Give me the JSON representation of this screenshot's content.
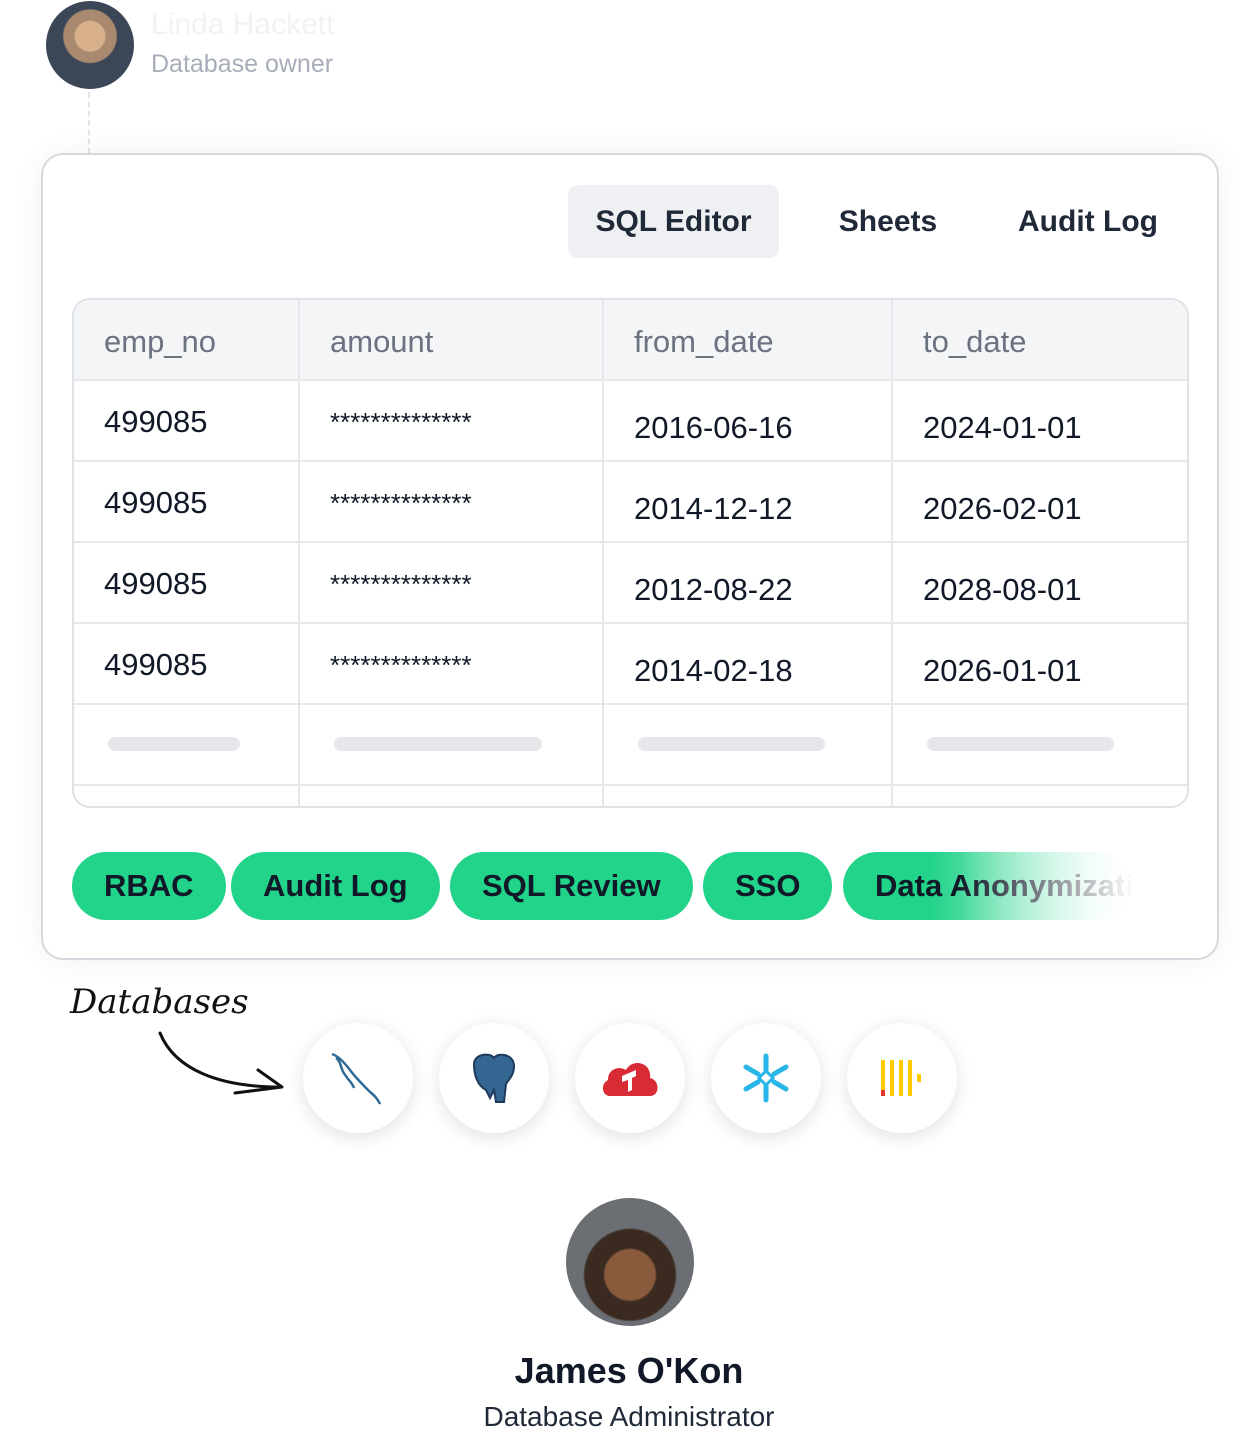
{
  "owner": {
    "name": "Linda Hackett",
    "role": "Database owner"
  },
  "tabs": [
    {
      "label": "SQL Editor",
      "active": true
    },
    {
      "label": "Sheets"
    },
    {
      "label": "Audit Log"
    }
  ],
  "table": {
    "columns": [
      "emp_no",
      "amount",
      "from_date",
      "to_date"
    ],
    "rows": [
      [
        "499085",
        "**************",
        "2016-06-16",
        "2024-01-01"
      ],
      [
        "499085",
        "**************",
        "2014-12-12",
        "2026-02-01"
      ],
      [
        "499085",
        "**************",
        "2012-08-22",
        "2028-08-01"
      ],
      [
        "499085",
        "**************",
        "2014-02-18",
        "2026-01-01"
      ]
    ]
  },
  "features": [
    "RBAC",
    "Audit Log",
    "SQL Review",
    "SSO",
    "Data Anonymization"
  ],
  "databases_label": "Databases",
  "databases": [
    "mysql-icon",
    "postgresql-icon",
    "tidb-icon",
    "snowflake-icon",
    "clickhouse-icon"
  ],
  "admin": {
    "name": "James O'Kon",
    "role": "Database Administrator"
  },
  "colors": {
    "accent": "#22d38a"
  }
}
